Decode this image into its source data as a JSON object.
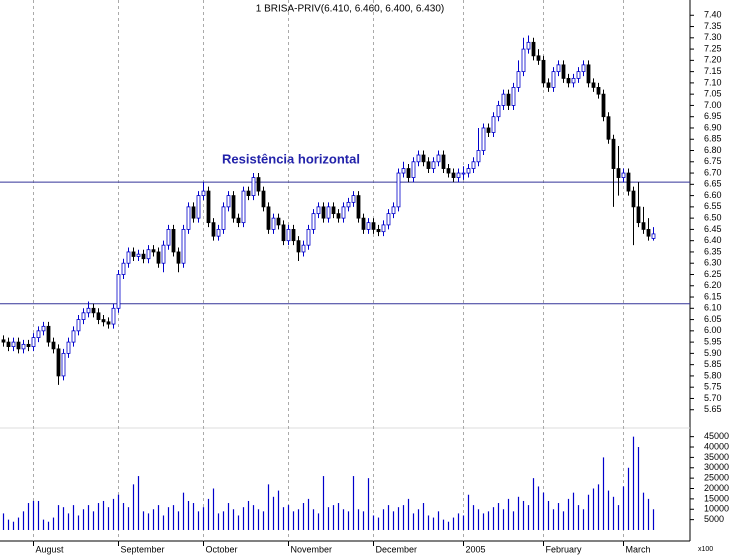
{
  "chart_data": {
    "type": "candlestick",
    "title": "1 BRISA-PRIV(6.410, 6.460, 6.400, 6.430)",
    "annotation": "Resistência horizontal",
    "volume_unit": "x100",
    "up_color": "#0000cc",
    "down_color": "#000000",
    "volume_color": "#0000cc",
    "hline_color": "#333399",
    "hlines": [
      6.66,
      6.12
    ],
    "categories": [
      null,
      null,
      null,
      null,
      null,
      null,
      "August",
      null,
      null,
      null,
      null,
      null,
      null,
      null,
      null,
      null,
      null,
      null,
      null,
      null,
      null,
      null,
      null,
      "September",
      null,
      null,
      null,
      null,
      null,
      null,
      null,
      null,
      null,
      null,
      null,
      null,
      null,
      null,
      null,
      null,
      "October",
      null,
      null,
      null,
      null,
      null,
      null,
      null,
      null,
      null,
      null,
      null,
      null,
      null,
      null,
      null,
      null,
      "November",
      null,
      null,
      null,
      null,
      null,
      null,
      null,
      null,
      null,
      null,
      null,
      null,
      null,
      null,
      null,
      null,
      "December",
      null,
      null,
      null,
      null,
      null,
      null,
      null,
      null,
      null,
      null,
      null,
      null,
      null,
      null,
      null,
      null,
      null,
      "2005",
      null,
      null,
      null,
      null,
      null,
      null,
      null,
      null,
      null,
      null,
      null,
      null,
      null,
      null,
      null,
      "February",
      null,
      null,
      null,
      null,
      null,
      null,
      null,
      null,
      null,
      null,
      null,
      null,
      null,
      null,
      null,
      "March",
      null,
      null,
      null,
      null,
      null,
      null
    ],
    "open": [
      5.96,
      5.95,
      5.93,
      5.95,
      5.92,
      5.94,
      5.93,
      5.97,
      6.0,
      6.02,
      5.95,
      5.92,
      5.8,
      5.9,
      5.95,
      6.0,
      6.05,
      6.08,
      6.1,
      6.08,
      6.05,
      6.04,
      6.03,
      6.1,
      6.25,
      6.3,
      6.35,
      6.33,
      6.34,
      6.32,
      6.36,
      6.35,
      6.3,
      6.38,
      6.45,
      6.35,
      6.3,
      6.45,
      6.55,
      6.5,
      6.6,
      6.62,
      6.48,
      6.42,
      6.45,
      6.55,
      6.6,
      6.5,
      6.48,
      6.62,
      6.6,
      6.68,
      6.62,
      6.55,
      6.45,
      6.5,
      6.47,
      6.4,
      6.45,
      6.4,
      6.35,
      6.38,
      6.45,
      6.52,
      6.55,
      6.5,
      6.55,
      6.52,
      6.5,
      6.55,
      6.57,
      6.6,
      6.5,
      6.45,
      6.48,
      6.45,
      6.44,
      6.47,
      6.52,
      6.55,
      6.7,
      6.72,
      6.68,
      6.75,
      6.78,
      6.75,
      6.72,
      6.75,
      6.78,
      6.72,
      6.7,
      6.68,
      6.7,
      6.7,
      6.72,
      6.75,
      6.8,
      6.9,
      6.88,
      6.95,
      7.0,
      7.05,
      7.0,
      7.08,
      7.15,
      7.25,
      7.28,
      7.22,
      7.2,
      7.1,
      7.08,
      7.15,
      7.18,
      7.12,
      7.1,
      7.12,
      7.15,
      7.18,
      7.1,
      7.08,
      7.05,
      6.95,
      6.85,
      6.72,
      6.68,
      6.7,
      6.62,
      6.55,
      6.48,
      6.45,
      6.41
    ],
    "high": [
      5.98,
      5.97,
      5.97,
      5.97,
      5.96,
      5.96,
      5.99,
      6.02,
      6.04,
      6.04,
      5.97,
      5.94,
      5.92,
      5.97,
      6.02,
      6.07,
      6.1,
      6.13,
      6.12,
      6.1,
      6.07,
      6.06,
      6.12,
      6.27,
      6.32,
      6.37,
      6.37,
      6.36,
      6.36,
      6.38,
      6.38,
      6.37,
      6.4,
      6.47,
      6.47,
      6.37,
      6.47,
      6.57,
      6.57,
      6.62,
      6.66,
      6.64,
      6.5,
      6.47,
      6.57,
      6.62,
      6.62,
      6.52,
      6.64,
      6.64,
      6.7,
      6.7,
      6.64,
      6.57,
      6.52,
      6.52,
      6.49,
      6.47,
      6.47,
      6.42,
      6.4,
      6.47,
      6.54,
      6.57,
      6.57,
      6.57,
      6.57,
      6.54,
      6.57,
      6.59,
      6.62,
      6.62,
      6.52,
      6.5,
      6.5,
      6.47,
      6.49,
      6.54,
      6.57,
      6.72,
      6.75,
      6.74,
      6.77,
      6.8,
      6.8,
      6.77,
      6.77,
      6.8,
      6.8,
      6.74,
      6.72,
      6.72,
      6.73,
      6.74,
      6.77,
      6.9,
      6.92,
      6.92,
      6.97,
      7.02,
      7.07,
      7.07,
      7.1,
      7.2,
      7.3,
      7.31,
      7.3,
      7.25,
      7.22,
      7.12,
      7.17,
      7.2,
      7.2,
      7.14,
      7.14,
      7.17,
      7.2,
      7.2,
      7.12,
      7.1,
      7.07,
      6.97,
      6.87,
      6.82,
      6.72,
      6.72,
      6.64,
      6.66,
      6.55,
      6.5,
      6.46
    ],
    "low": [
      5.93,
      5.91,
      5.91,
      5.9,
      5.9,
      5.91,
      5.91,
      5.95,
      5.98,
      5.93,
      5.9,
      5.76,
      5.78,
      5.88,
      5.93,
      5.98,
      6.03,
      6.06,
      6.06,
      6.03,
      6.02,
      6.01,
      6.01,
      6.08,
      6.23,
      6.28,
      6.31,
      6.31,
      6.3,
      6.3,
      6.33,
      6.28,
      6.26,
      6.36,
      6.33,
      6.26,
      6.28,
      6.43,
      6.48,
      6.48,
      6.58,
      6.46,
      6.4,
      6.4,
      6.43,
      6.53,
      6.48,
      6.46,
      6.46,
      6.58,
      6.58,
      6.6,
      6.53,
      6.43,
      6.43,
      6.45,
      6.38,
      6.38,
      6.38,
      6.31,
      6.33,
      6.36,
      6.43,
      6.5,
      6.48,
      6.48,
      6.5,
      6.48,
      6.48,
      6.53,
      6.55,
      6.48,
      6.43,
      6.43,
      6.43,
      6.42,
      6.42,
      6.45,
      6.5,
      6.53,
      6.68,
      6.66,
      6.66,
      6.73,
      6.73,
      6.7,
      6.7,
      6.73,
      6.7,
      6.68,
      6.66,
      6.66,
      6.67,
      6.68,
      6.7,
      6.73,
      6.78,
      6.86,
      6.86,
      6.93,
      6.98,
      6.98,
      6.98,
      7.06,
      7.13,
      7.23,
      7.2,
      7.18,
      7.08,
      7.06,
      7.06,
      7.13,
      7.1,
      7.08,
      7.08,
      7.1,
      7.13,
      7.08,
      7.06,
      7.03,
      6.93,
      6.83,
      6.55,
      6.6,
      6.66,
      6.6,
      6.38,
      6.46,
      6.43,
      6.4,
      6.4
    ],
    "close": [
      5.95,
      5.93,
      5.95,
      5.92,
      5.94,
      5.93,
      5.97,
      6.0,
      6.02,
      5.95,
      5.92,
      5.8,
      5.9,
      5.95,
      6.0,
      6.05,
      6.08,
      6.1,
      6.08,
      6.05,
      6.04,
      6.03,
      6.1,
      6.25,
      6.3,
      6.35,
      6.33,
      6.34,
      6.32,
      6.36,
      6.35,
      6.3,
      6.38,
      6.45,
      6.35,
      6.3,
      6.45,
      6.55,
      6.5,
      6.6,
      6.62,
      6.48,
      6.42,
      6.45,
      6.55,
      6.6,
      6.5,
      6.48,
      6.62,
      6.6,
      6.68,
      6.62,
      6.55,
      6.45,
      6.5,
      6.47,
      6.4,
      6.45,
      6.4,
      6.35,
      6.38,
      6.45,
      6.52,
      6.55,
      6.5,
      6.55,
      6.52,
      6.5,
      6.55,
      6.57,
      6.6,
      6.5,
      6.45,
      6.48,
      6.45,
      6.44,
      6.47,
      6.52,
      6.55,
      6.7,
      6.72,
      6.68,
      6.75,
      6.78,
      6.75,
      6.72,
      6.75,
      6.78,
      6.72,
      6.7,
      6.68,
      6.7,
      6.7,
      6.72,
      6.75,
      6.8,
      6.9,
      6.88,
      6.95,
      7.0,
      7.05,
      7.0,
      7.08,
      7.15,
      7.25,
      7.28,
      7.22,
      7.2,
      7.1,
      7.08,
      7.15,
      7.18,
      7.12,
      7.1,
      7.12,
      7.15,
      7.18,
      7.1,
      7.08,
      7.05,
      6.95,
      6.85,
      6.72,
      6.68,
      6.7,
      6.62,
      6.55,
      6.48,
      6.45,
      6.42,
      6.43
    ],
    "volume": [
      8000,
      5000,
      4000,
      6000,
      9000,
      13000,
      14000,
      14000,
      5000,
      4000,
      6000,
      12000,
      11000,
      8000,
      12000,
      7000,
      10000,
      12000,
      9000,
      13000,
      14000,
      11000,
      15000,
      17000,
      13000,
      11000,
      22000,
      26000,
      9000,
      8000,
      10000,
      12000,
      7000,
      11000,
      12000,
      9000,
      18000,
      14000,
      13000,
      9000,
      11000,
      15000,
      20000,
      8000,
      9000,
      13000,
      10000,
      7000,
      11000,
      14000,
      12000,
      10000,
      9000,
      22000,
      16000,
      19000,
      11000,
      12000,
      9000,
      10000,
      13000,
      15000,
      10000,
      8000,
      26000,
      11000,
      12000,
      13000,
      10000,
      9000,
      26000,
      10000,
      9000,
      25000,
      7000,
      6000,
      10000,
      12000,
      9000,
      11000,
      12000,
      15000,
      8000,
      10000,
      13000,
      7000,
      6000,
      9000,
      5000,
      4000,
      6000,
      8000,
      7000,
      17000,
      12000,
      10000,
      8000,
      9000,
      11000,
      13000,
      10000,
      15000,
      9000,
      16000,
      14000,
      12000,
      25000,
      21000,
      18000,
      14000,
      10000,
      13000,
      9000,
      15000,
      18000,
      12000,
      10000,
      17000,
      20000,
      22000,
      35000,
      19000,
      16000,
      12000,
      21000,
      30000,
      45000,
      40000,
      18000,
      15000,
      10000
    ],
    "ylim": [
      5.6,
      7.45
    ],
    "yticks": [
      5.65,
      {
        "value": 5.7,
        "label": "5.70"
      },
      5.75,
      {
        "value": 5.8,
        "label": "5.80"
      },
      5.85,
      {
        "value": 5.9,
        "label": "5.90"
      },
      5.95,
      {
        "value": 6.0,
        "label": "6.00"
      },
      6.05,
      {
        "value": 6.1,
        "label": "6.10"
      },
      6.15,
      {
        "value": 6.2,
        "label": "6.20"
      },
      6.25,
      {
        "value": 6.3,
        "label": "6.30"
      },
      6.35,
      {
        "value": 6.4,
        "label": "6.40"
      },
      6.45,
      {
        "value": 6.5,
        "label": "6.50"
      },
      6.55,
      {
        "value": 6.6,
        "label": "6.60"
      },
      6.65,
      {
        "value": 6.7,
        "label": "6.70"
      },
      6.75,
      {
        "value": 6.8,
        "label": "6.80"
      },
      6.85,
      {
        "value": 6.9,
        "label": "6.90"
      },
      6.95,
      {
        "value": 7.0,
        "label": "7.00"
      },
      7.05,
      {
        "value": 7.1,
        "label": "7.10"
      },
      7.15,
      {
        "value": 7.2,
        "label": "7.20"
      },
      7.25,
      {
        "value": 7.3,
        "label": "7.30"
      },
      7.35,
      {
        "value": 7.4,
        "label": "7.40"
      }
    ],
    "vlim": [
      0,
      47000
    ],
    "vticks": [
      5000,
      10000,
      15000,
      20000,
      25000,
      30000,
      35000,
      40000,
      45000
    ]
  }
}
